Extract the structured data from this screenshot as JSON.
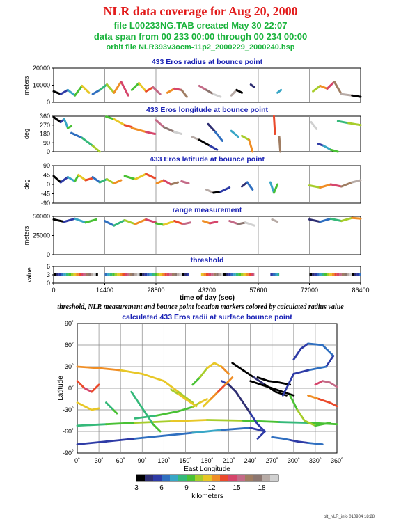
{
  "header": {
    "title": "NLR data coverage for Aug 20, 2000",
    "file_line": "file L00233NG.TAB created May 30 22:07",
    "span_line": "data span from 00 233 00:00 through 00 234 00:00",
    "orbit_line": "orbit file NLR393v3ocm-11p2_2000229_2000240.bsp"
  },
  "caption": "threshold, NLR measurement and bounce point location markers colored by calculated radius value",
  "footer": "plt_NLR_info 010904 18:28",
  "colors": {
    "title": "#e21b1b",
    "subtitle": "#19b33b",
    "panel_title": "#1a22b5",
    "colorbar": [
      "#000000",
      "#2e2e72",
      "#2e3ba6",
      "#2f6fc0",
      "#38a6c6",
      "#35b97a",
      "#49c134",
      "#a7cd2b",
      "#e8c727",
      "#f08e25",
      "#ea4a2c",
      "#d6456b",
      "#c46a87",
      "#a07d62",
      "#8c7670",
      "#b7aba6",
      "#d0d0d0"
    ]
  },
  "chart_data": [
    {
      "type": "line",
      "title": "433 Eros radius at bounce point",
      "ylabel": "meters",
      "xlim": [
        0,
        86400
      ],
      "ylim": [
        0,
        25000
      ],
      "yticks": [
        "0",
        "10000",
        "20000"
      ],
      "series": [
        {
          "x": [
            0,
            2000,
            4000,
            6000,
            8000,
            10000
          ],
          "y": [
            8000,
            6000,
            9000,
            5000,
            12000,
            7000
          ]
        },
        {
          "x": [
            11000,
            13000,
            15000,
            17000,
            19000,
            21000
          ],
          "y": [
            6000,
            9000,
            13000,
            7000,
            15000,
            5000
          ]
        },
        {
          "x": [
            22000,
            24000,
            26000,
            28000,
            30000
          ],
          "y": [
            9000,
            14000,
            8000,
            11000,
            6000
          ]
        },
        {
          "x": [
            32000,
            34000,
            36000,
            37500
          ],
          "y": [
            7000,
            10000,
            9000,
            4000
          ]
        },
        {
          "x": [
            41000,
            43000,
            45000,
            47000
          ],
          "y": [
            12000,
            9000,
            6000,
            4000
          ]
        },
        {
          "x": [
            50000,
            51500,
            53000
          ],
          "y": [
            5000,
            9000,
            7000
          ]
        },
        {
          "x": [
            55500,
            56500
          ],
          "y": [
            13000,
            11000
          ]
        },
        {
          "x": [
            63000,
            64000
          ],
          "y": [
            7000,
            9000
          ]
        },
        {
          "x": [
            73000,
            75000,
            77000,
            79000,
            81000,
            84000,
            86400
          ],
          "y": [
            8000,
            12000,
            10000,
            15000,
            6000,
            5000,
            4000
          ]
        }
      ]
    },
    {
      "type": "line",
      "title": "433 Eros longitude at bounce point",
      "ylabel": "deg",
      "xlim": [
        0,
        86400
      ],
      "ylim": [
        0,
        360
      ],
      "yticks": [
        "0",
        "90",
        "180",
        "270",
        "360"
      ],
      "series": [
        {
          "x": [
            0,
            2000,
            3000,
            4000,
            5000
          ],
          "y": [
            350,
            300,
            330,
            240,
            260
          ]
        },
        {
          "x": [
            5000,
            8000,
            11000,
            13000
          ],
          "y": [
            190,
            140,
            60,
            0
          ]
        },
        {
          "x": [
            14800,
            17000,
            20000,
            22000
          ],
          "y": [
            355,
            330,
            270,
            250
          ]
        },
        {
          "x": [
            22000,
            26000,
            28500
          ],
          "y": [
            240,
            200,
            180
          ]
        },
        {
          "x": [
            28800,
            31000,
            34000,
            36000
          ],
          "y": [
            320,
            250,
            200,
            180
          ]
        },
        {
          "x": [
            39000,
            41000,
            44000,
            46000
          ],
          "y": [
            150,
            120,
            60,
            20
          ]
        },
        {
          "x": [
            43500,
            45500,
            47500
          ],
          "y": [
            280,
            200,
            110
          ]
        },
        {
          "x": [
            50000,
            52000
          ],
          "y": [
            210,
            150
          ]
        },
        {
          "x": [
            53000,
            55000,
            56000
          ],
          "y": [
            160,
            120,
            0
          ]
        },
        {
          "x": [
            62000,
            62300
          ],
          "y": [
            360,
            180
          ]
        },
        {
          "x": [
            63500,
            63800
          ],
          "y": [
            150,
            0
          ]
        },
        {
          "x": [
            72500,
            74000
          ],
          "y": [
            300,
            230
          ]
        },
        {
          "x": [
            74500,
            76000,
            78000,
            80000
          ],
          "y": [
            80,
            60,
            20,
            0
          ]
        },
        {
          "x": [
            80000,
            83000,
            86400
          ],
          "y": [
            310,
            290,
            270
          ]
        }
      ]
    },
    {
      "type": "line",
      "title": "433 Eros latitude at bounce point",
      "ylabel": "deg",
      "xlim": [
        0,
        86400
      ],
      "ylim": [
        -90,
        90
      ],
      "yticks": [
        "-90",
        "-45",
        "0",
        "45",
        "90"
      ],
      "series": [
        {
          "x": [
            0,
            2000,
            4000,
            6000,
            7000,
            9000,
            11000
          ],
          "y": [
            40,
            10,
            35,
            15,
            45,
            20,
            30
          ]
        },
        {
          "x": [
            11000,
            13000,
            15000,
            17000,
            19000
          ],
          "y": [
            35,
            10,
            25,
            5,
            20
          ]
        },
        {
          "x": [
            20000,
            23000,
            26000,
            28500
          ],
          "y": [
            40,
            25,
            50,
            30
          ]
        },
        {
          "x": [
            29000,
            31000,
            33000,
            35000
          ],
          "y": [
            5,
            20,
            0,
            10
          ]
        },
        {
          "x": [
            36000,
            38000
          ],
          "y": [
            15,
            5
          ]
        },
        {
          "x": [
            43000,
            45000,
            47000,
            49500
          ],
          "y": [
            -25,
            -40,
            -35,
            -15
          ]
        },
        {
          "x": [
            53000,
            54500,
            56000
          ],
          "y": [
            -10,
            10,
            -25
          ]
        },
        {
          "x": [
            61000,
            62000,
            63000
          ],
          "y": [
            10,
            -40,
            0
          ]
        },
        {
          "x": [
            72000,
            75000,
            78000,
            81000,
            84000,
            86400
          ],
          "y": [
            -5,
            -15,
            0,
            -10,
            10,
            20
          ]
        }
      ]
    },
    {
      "type": "line",
      "title": "range measurement",
      "ylabel": "meters",
      "xlim": [
        0,
        86400
      ],
      "ylim": [
        0,
        50000
      ],
      "yticks": [
        "0",
        "25000",
        "50000"
      ],
      "series": [
        {
          "x": [
            0,
            3000,
            6000,
            9000,
            12000
          ],
          "y": [
            46000,
            43000,
            47000,
            42000,
            46000
          ]
        },
        {
          "x": [
            14400,
            17000,
            20000,
            23000,
            26000,
            28800
          ],
          "y": [
            44000,
            38000,
            45000,
            40000,
            46000,
            42000
          ]
        },
        {
          "x": [
            28800,
            31000,
            34000,
            36500,
            38500
          ],
          "y": [
            41000,
            39000,
            44000,
            40000,
            42000
          ]
        },
        {
          "x": [
            42000,
            44000,
            46000
          ],
          "y": [
            44000,
            41000,
            43000
          ]
        },
        {
          "x": [
            49500,
            52000,
            54000,
            56500
          ],
          "y": [
            44000,
            40000,
            42000,
            38000
          ]
        },
        {
          "x": [
            61500,
            63000
          ],
          "y": [
            46000,
            43000
          ]
        },
        {
          "x": [
            72000,
            75000,
            78000,
            81000,
            84000,
            86400
          ],
          "y": [
            46000,
            43000,
            47000,
            44000,
            48000,
            47000
          ]
        }
      ]
    },
    {
      "type": "scatter",
      "title": "threshold",
      "ylabel": "value",
      "xlim": [
        0,
        86400
      ],
      "ylim": [
        0,
        6
      ],
      "yticks": [
        "0",
        "3",
        "6"
      ],
      "segments": [
        [
          0,
          12500
        ],
        [
          14400,
          38000
        ],
        [
          41500,
          56500
        ],
        [
          61000,
          63500
        ],
        [
          72000,
          86400
        ]
      ],
      "y": 3
    },
    {
      "type": "scatter",
      "title": "calculated 433 Eros radii at surface bounce point",
      "xlabel": "East Longitude",
      "ylabel": "Latitude",
      "xlim": [
        0,
        360
      ],
      "ylim": [
        -90,
        90
      ],
      "xticks": [
        "0˚",
        "30˚",
        "60˚",
        "90˚",
        "120˚",
        "150˚",
        "180˚",
        "210˚",
        "240˚",
        "270˚",
        "300˚",
        "330˚",
        "360˚"
      ],
      "yticks": [
        "90˚",
        "60˚",
        "30˚",
        "0˚",
        "-30˚",
        "-60˚",
        "-90˚"
      ],
      "colorbar": {
        "label": "kilometers",
        "ticks": [
          "3",
          "6",
          "9",
          "12",
          "15",
          "18"
        ],
        "range": [
          3,
          20
        ]
      },
      "tracks": [
        {
          "lon": [
            0,
            40,
            80,
            130,
            180,
            230,
            280,
            320,
            360
          ],
          "lat": [
            -52,
            -50,
            -48,
            -46,
            -44,
            -45,
            -47,
            -48,
            -50
          ],
          "r": [
            8,
            9,
            10,
            11,
            10,
            9,
            8,
            9,
            10
          ]
        },
        {
          "lon": [
            0,
            40,
            80,
            120,
            160,
            200,
            240,
            260,
            250
          ],
          "lat": [
            -78,
            -74,
            -70,
            -66,
            -62,
            -58,
            -55,
            -60,
            -70
          ],
          "r": [
            5,
            5,
            6,
            6,
            7,
            6,
            5,
            5,
            6
          ]
        },
        {
          "lon": [
            0,
            30,
            60,
            90,
            120,
            140,
            160
          ],
          "lat": [
            30,
            28,
            25,
            20,
            10,
            -5,
            -20
          ],
          "r": [
            13,
            13,
            12,
            12,
            11,
            10,
            9
          ]
        },
        {
          "lon": [
            80,
            110,
            140,
            160,
            170,
            180
          ],
          "lat": [
            -42,
            -38,
            -32,
            -26,
            -20,
            -15
          ],
          "r": [
            8,
            9,
            9,
            10,
            11,
            11
          ]
        },
        {
          "lon": [
            200,
            210,
            220,
            230,
            240,
            250,
            260
          ],
          "lat": [
            10,
            5,
            -5,
            -20,
            -35,
            -50,
            -60
          ],
          "r": [
            5,
            4,
            4,
            4,
            5,
            5,
            6
          ]
        },
        {
          "lon": [
            215,
            230,
            245,
            260,
            275,
            290
          ],
          "lat": [
            35,
            25,
            15,
            5,
            -5,
            -10
          ],
          "r": [
            3,
            3,
            4,
            3,
            3,
            4
          ]
        },
        {
          "lon": [
            240,
            255,
            270,
            285,
            300
          ],
          "lat": [
            10,
            5,
            0,
            -5,
            -10
          ],
          "r": [
            3,
            3,
            3,
            3,
            4
          ]
        },
        {
          "lon": [
            250,
            265,
            280,
            295
          ],
          "lat": [
            15,
            10,
            8,
            5
          ],
          "r": [
            3,
            3,
            3,
            3
          ]
        },
        {
          "lon": [
            300,
            310,
            320,
            340,
            355,
            345,
            320,
            300,
            285
          ],
          "lat": [
            40,
            55,
            62,
            60,
            45,
            30,
            25,
            20,
            -10
          ],
          "r": [
            5,
            5,
            6,
            6,
            5,
            6,
            5,
            5,
            5
          ]
        },
        {
          "lon": [
            295,
            305,
            315,
            330,
            350
          ],
          "lat": [
            -10,
            -30,
            -45,
            -52,
            -48
          ],
          "r": [
            9,
            10,
            10,
            9,
            9
          ]
        },
        {
          "lon": [
            330,
            340,
            350,
            360
          ],
          "lat": [
            5,
            10,
            8,
            2
          ],
          "r": [
            15,
            16,
            16,
            15
          ]
        },
        {
          "lon": [
            320,
            335,
            350,
            360
          ],
          "lat": [
            -10,
            -15,
            -20,
            -25
          ],
          "r": [
            13,
            14,
            14,
            13
          ]
        },
        {
          "lon": [
            160,
            170,
            180,
            190,
            200,
            210
          ],
          "lat": [
            5,
            15,
            28,
            35,
            30,
            20
          ],
          "r": [
            9,
            10,
            11,
            12,
            13,
            12
          ]
        },
        {
          "lon": [
            175,
            185,
            195,
            205,
            215
          ],
          "lat": [
            -25,
            -15,
            -5,
            5,
            15
          ],
          "r": [
            12,
            13,
            14,
            13,
            12
          ]
        },
        {
          "lon": [
            0,
            10,
            20,
            30
          ],
          "lat": [
            10,
            0,
            -5,
            5
          ],
          "r": [
            14,
            15,
            14,
            13
          ]
        },
        {
          "lon": [
            0,
            10,
            20,
            30
          ],
          "lat": [
            -20,
            -25,
            -30,
            -28
          ],
          "r": [
            11,
            12,
            11,
            10
          ]
        },
        {
          "lon": [
            40,
            50,
            55
          ],
          "lat": [
            -20,
            -30,
            -35
          ],
          "r": [
            8,
            9,
            9
          ]
        },
        {
          "lon": [
            75,
            85,
            95,
            105,
            115
          ],
          "lat": [
            -5,
            -20,
            -35,
            -50,
            -60
          ],
          "r": [
            8,
            8,
            8,
            9,
            8
          ]
        },
        {
          "lon": [
            130,
            140,
            150,
            165
          ],
          "lat": [
            -2,
            -8,
            -15,
            -25
          ],
          "r": [
            10,
            11,
            11,
            12
          ]
        },
        {
          "lon": [
            270,
            285,
            295,
            305,
            320,
            340
          ],
          "lat": [
            -68,
            -70,
            -72,
            -74,
            -76,
            -78
          ],
          "r": [
            6,
            6,
            5,
            5,
            6,
            6
          ]
        }
      ]
    }
  ]
}
